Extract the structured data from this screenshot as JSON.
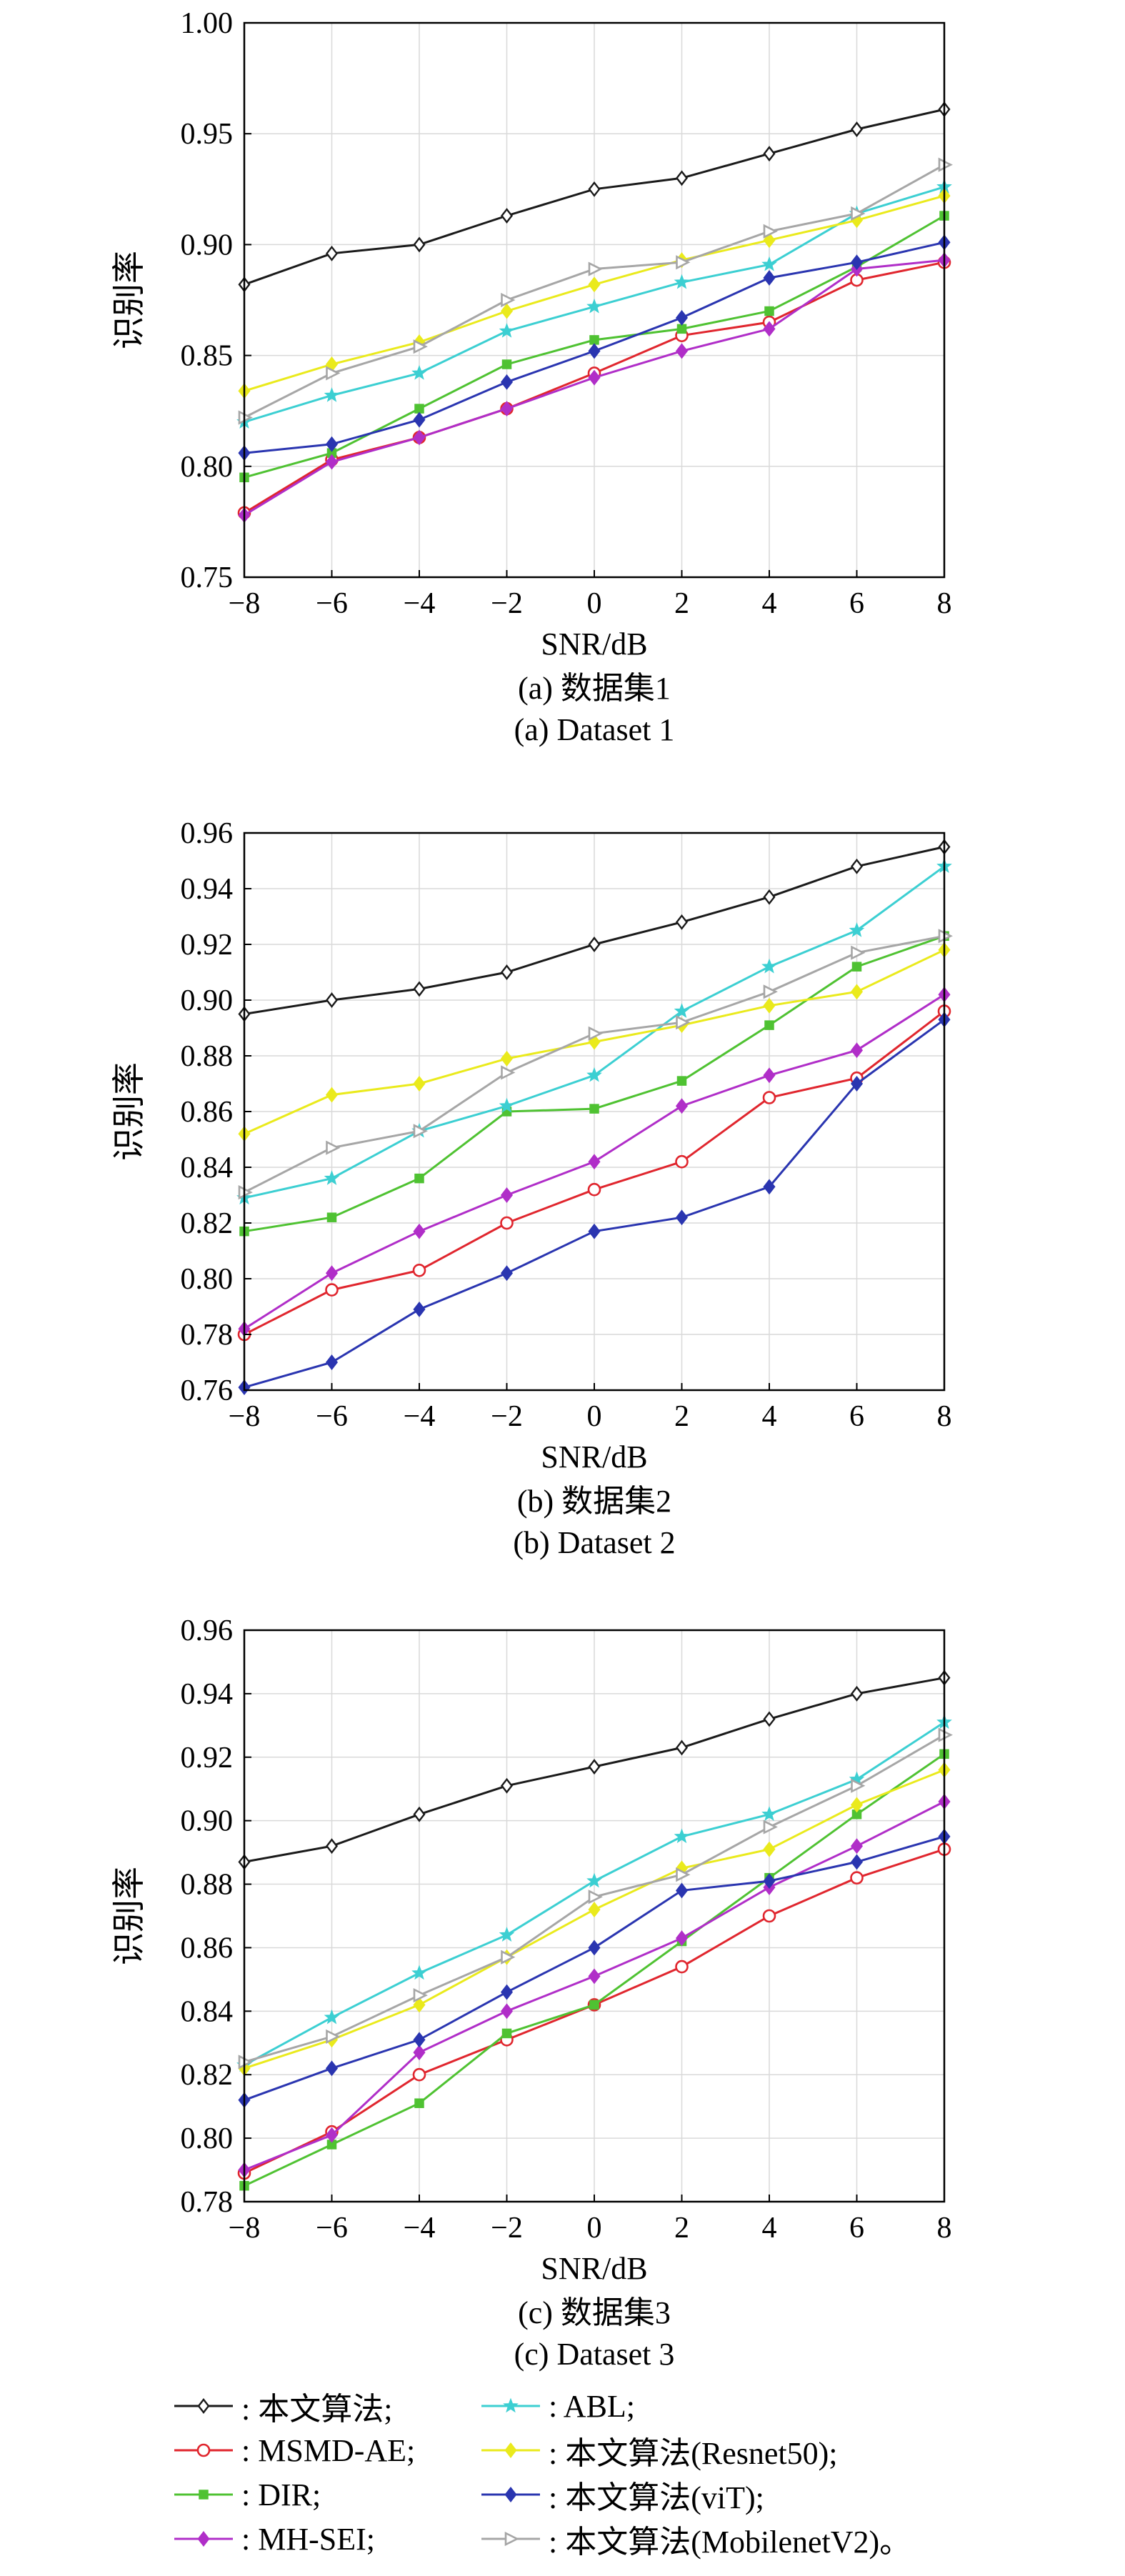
{
  "colors": {
    "本文算法": "#1a1a1a",
    "MSMD-AE": "#e0262e",
    "DIR": "#4fc232",
    "MH-SEI": "#b02ec8",
    "ABL": "#3ccfd2",
    "本文算法(Resnet50)": "#eaea1c",
    "本文算法(viT)": "#2a35b0",
    "本文算法(MobilenetV2)": "#a6a6a6"
  },
  "markers": {
    "本文算法": "diamond",
    "MSMD-AE": "circle",
    "DIR": "square",
    "MH-SEI": "diamond",
    "ABL": "star",
    "本文算法(Resnet50)": "diamond",
    "本文算法(viT)": "diamond",
    "本文算法(MobilenetV2)": "triangle-right"
  },
  "chart_data": [
    {
      "type": "line",
      "caption_cn": "(a) 数据集1",
      "caption_en": "(a) Dataset 1",
      "xlabel": "SNR/dB",
      "ylabel": "识别率",
      "x": [
        -8,
        -6,
        -4,
        -2,
        0,
        2,
        4,
        6,
        8
      ],
      "xticks": [
        "−8",
        "−6",
        "−4",
        "−2",
        "0",
        "2",
        "4",
        "6",
        "8"
      ],
      "ylim": [
        0.75,
        1.0
      ],
      "yticks": [
        "0.75",
        "0.80",
        "0.85",
        "0.90",
        "0.95",
        "1.00"
      ],
      "grid": true,
      "series": [
        {
          "name": "本文算法",
          "values": [
            0.882,
            0.896,
            0.9,
            0.913,
            0.925,
            0.93,
            0.941,
            0.952,
            0.961
          ]
        },
        {
          "name": "MSMD-AE",
          "values": [
            0.779,
            0.803,
            0.813,
            0.826,
            0.842,
            0.859,
            0.865,
            0.884,
            0.892
          ]
        },
        {
          "name": "DIR",
          "values": [
            0.795,
            0.806,
            0.826,
            0.846,
            0.857,
            0.862,
            0.87,
            0.89,
            0.913
          ]
        },
        {
          "name": "MH-SEI",
          "values": [
            0.778,
            0.802,
            0.813,
            0.826,
            0.84,
            0.852,
            0.862,
            0.889,
            0.893
          ]
        },
        {
          "name": "ABL",
          "values": [
            0.82,
            0.832,
            0.842,
            0.861,
            0.872,
            0.883,
            0.891,
            0.914,
            0.926
          ]
        },
        {
          "name": "本文算法(Resnet50)",
          "values": [
            0.834,
            0.846,
            0.856,
            0.87,
            0.882,
            0.893,
            0.902,
            0.911,
            0.922
          ]
        },
        {
          "name": "本文算法(viT)",
          "values": [
            0.806,
            0.81,
            0.821,
            0.838,
            0.852,
            0.867,
            0.885,
            0.892,
            0.901
          ]
        },
        {
          "name": "本文算法(MobilenetV2)",
          "values": [
            0.822,
            0.842,
            0.854,
            0.875,
            0.889,
            0.892,
            0.906,
            0.914,
            0.936
          ]
        }
      ]
    },
    {
      "type": "line",
      "caption_cn": "(b) 数据集2",
      "caption_en": "(b) Dataset 2",
      "xlabel": "SNR/dB",
      "ylabel": "识别率",
      "x": [
        -8,
        -6,
        -4,
        -2,
        0,
        2,
        4,
        6,
        8
      ],
      "xticks": [
        "−8",
        "−6",
        "−4",
        "−2",
        "0",
        "2",
        "4",
        "6",
        "8"
      ],
      "ylim": [
        0.76,
        0.96
      ],
      "yticks": [
        "0.76",
        "0.78",
        "0.80",
        "0.82",
        "0.84",
        "0.86",
        "0.88",
        "0.90",
        "0.92",
        "0.94",
        "0.96"
      ],
      "grid": true,
      "series": [
        {
          "name": "本文算法",
          "values": [
            0.895,
            0.9,
            0.904,
            0.91,
            0.92,
            0.928,
            0.937,
            0.948,
            0.955
          ]
        },
        {
          "name": "MSMD-AE",
          "values": [
            0.78,
            0.796,
            0.803,
            0.82,
            0.832,
            0.842,
            0.865,
            0.872,
            0.896
          ]
        },
        {
          "name": "DIR",
          "values": [
            0.817,
            0.822,
            0.836,
            0.86,
            0.861,
            0.871,
            0.891,
            0.912,
            0.923
          ]
        },
        {
          "name": "MH-SEI",
          "values": [
            0.782,
            0.802,
            0.817,
            0.83,
            0.842,
            0.862,
            0.873,
            0.882,
            0.902
          ]
        },
        {
          "name": "ABL",
          "values": [
            0.829,
            0.836,
            0.853,
            0.862,
            0.873,
            0.896,
            0.912,
            0.925,
            0.948
          ]
        },
        {
          "name": "本文算法(Resnet50)",
          "values": [
            0.852,
            0.866,
            0.87,
            0.879,
            0.885,
            0.891,
            0.898,
            0.903,
            0.918
          ]
        },
        {
          "name": "本文算法(viT)",
          "values": [
            0.761,
            0.77,
            0.789,
            0.802,
            0.817,
            0.822,
            0.833,
            0.87,
            0.893
          ]
        },
        {
          "name": "本文算法(MobilenetV2)",
          "values": [
            0.831,
            0.847,
            0.853,
            0.874,
            0.888,
            0.892,
            0.903,
            0.917,
            0.923
          ]
        }
      ]
    },
    {
      "type": "line",
      "caption_cn": "(c) 数据集3",
      "caption_en": "(c) Dataset 3",
      "xlabel": "SNR/dB",
      "ylabel": "识别率",
      "x": [
        -8,
        -6,
        -4,
        -2,
        0,
        2,
        4,
        6,
        8
      ],
      "xticks": [
        "−8",
        "−6",
        "−4",
        "−2",
        "0",
        "2",
        "4",
        "6",
        "8"
      ],
      "ylim": [
        0.78,
        0.96
      ],
      "yticks": [
        "0.78",
        "0.80",
        "0.82",
        "0.84",
        "0.86",
        "0.88",
        "0.90",
        "0.92",
        "0.94",
        "0.96"
      ],
      "grid": true,
      "series": [
        {
          "name": "本文算法",
          "values": [
            0.887,
            0.892,
            0.902,
            0.911,
            0.917,
            0.923,
            0.932,
            0.94,
            0.945
          ]
        },
        {
          "name": "MSMD-AE",
          "values": [
            0.789,
            0.802,
            0.82,
            0.831,
            0.842,
            0.854,
            0.87,
            0.882,
            0.891
          ]
        },
        {
          "name": "DIR",
          "values": [
            0.785,
            0.798,
            0.811,
            0.833,
            0.842,
            0.862,
            0.882,
            0.902,
            0.921
          ]
        },
        {
          "name": "MH-SEI",
          "values": [
            0.79,
            0.801,
            0.827,
            0.84,
            0.851,
            0.863,
            0.879,
            0.892,
            0.906
          ]
        },
        {
          "name": "ABL",
          "values": [
            0.823,
            0.838,
            0.852,
            0.864,
            0.881,
            0.895,
            0.902,
            0.913,
            0.931
          ]
        },
        {
          "name": "本文算法(Resnet50)",
          "values": [
            0.822,
            0.831,
            0.842,
            0.857,
            0.872,
            0.885,
            0.891,
            0.905,
            0.916
          ]
        },
        {
          "name": "本文算法(viT)",
          "values": [
            0.812,
            0.822,
            0.831,
            0.846,
            0.86,
            0.878,
            0.881,
            0.887,
            0.895
          ]
        },
        {
          "name": "本文算法(MobilenetV2)",
          "values": [
            0.824,
            0.832,
            0.845,
            0.857,
            0.876,
            0.883,
            0.898,
            0.911,
            0.927
          ]
        }
      ]
    }
  ],
  "legend": {
    "items": [
      {
        "series": "本文算法",
        "label": ": 本文算法;"
      },
      {
        "series": "MSMD-AE",
        "label": ": MSMD-AE;"
      },
      {
        "series": "DIR",
        "label": ": DIR;"
      },
      {
        "series": "MH-SEI",
        "label": ": MH-SEI;"
      },
      {
        "series": "ABL",
        "label": ": ABL;"
      },
      {
        "series": "本文算法(Resnet50)",
        "label": ": 本文算法(Resnet50);"
      },
      {
        "series": "本文算法(viT)",
        "label": ": 本文算法(viT);"
      },
      {
        "series": "本文算法(MobilenetV2)",
        "label": ": 本文算法(MobilenetV2)。"
      }
    ]
  }
}
